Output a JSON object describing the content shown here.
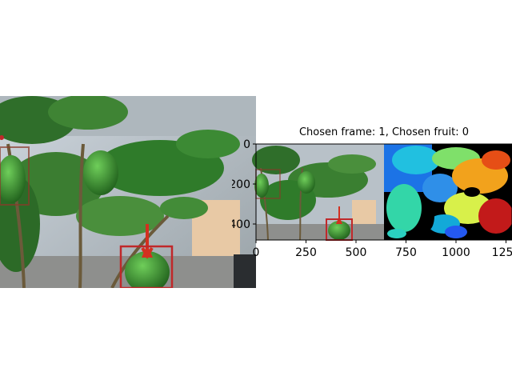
{
  "title": "Chosen frame: 1, Chosen fruit: 0",
  "axes": {
    "x_ticks": [
      "0",
      "250",
      "500",
      "750",
      "1000",
      "1250"
    ],
    "y_ticks": [
      "0",
      "200",
      "400"
    ]
  },
  "colors": {
    "bbox": "#c0282a",
    "arrow": "#d33020",
    "leaf": "#2f7b2a",
    "pepper": "#2b8a2a"
  }
}
